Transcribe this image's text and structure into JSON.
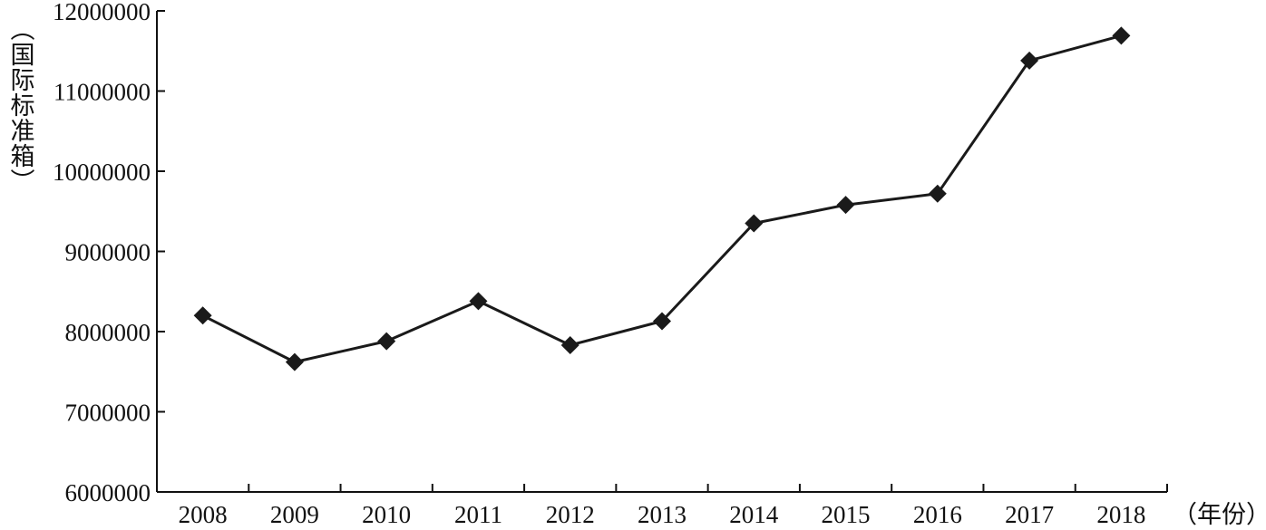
{
  "chart_data": {
    "type": "line",
    "title": "",
    "xlabel": "（年份）",
    "ylabel": "（国际标准箱）",
    "categories": [
      "2008",
      "2009",
      "2010",
      "2011",
      "2012",
      "2013",
      "2014",
      "2015",
      "2016",
      "2017",
      "2018"
    ],
    "series": [
      {
        "values": [
          8200000,
          7620000,
          7880000,
          8380000,
          7830000,
          8130000,
          9350000,
          9580000,
          9720000,
          11380000,
          11690000
        ],
        "marker": "diamond",
        "color": "#1a1a1a"
      }
    ],
    "yticks": [
      6000000,
      7000000,
      8000000,
      9000000,
      10000000,
      11000000,
      12000000
    ],
    "ytick_labels": [
      "6000000",
      "7000000",
      "8000000",
      "9000000",
      "10000000",
      "11000000",
      "12000000"
    ],
    "ylim": [
      6000000,
      12000000
    ],
    "grid": false,
    "legend": "none"
  }
}
